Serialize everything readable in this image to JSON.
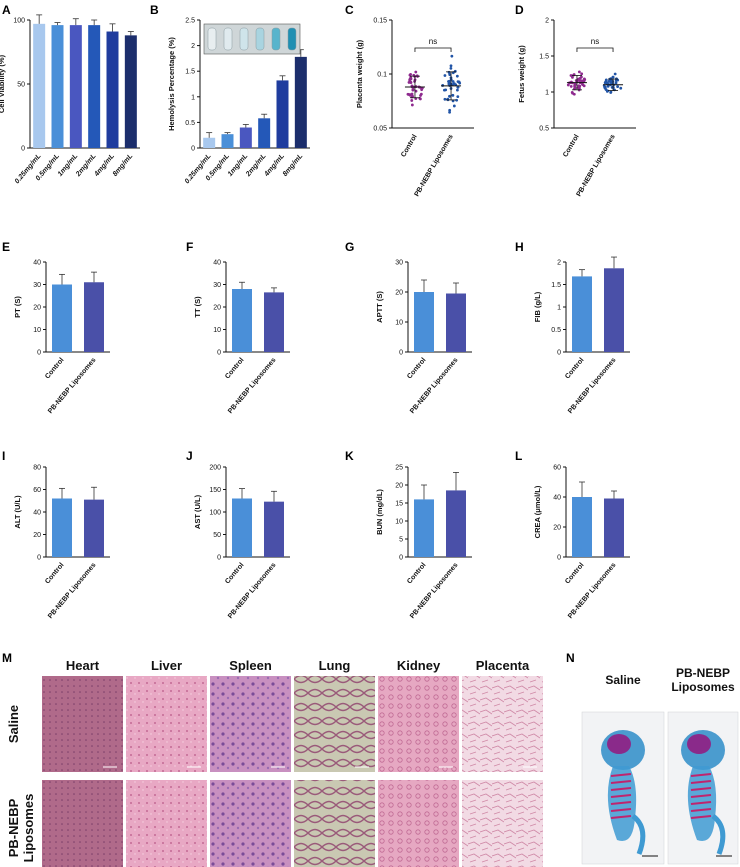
{
  "chart_data": [
    {
      "panel": "A",
      "type": "bar",
      "ylabel": "Cell Viability (%)",
      "categories": [
        "0.25mg/mL",
        "0.5mg/mL",
        "1mg/mL",
        "2mg/mL",
        "4mg/mL",
        "8mg/mL"
      ],
      "values": [
        97,
        96,
        96,
        96,
        91,
        88
      ],
      "errors": [
        7,
        2,
        5,
        4,
        6,
        3
      ],
      "ylim": [
        0,
        100
      ],
      "yticks": [
        0,
        50,
        100
      ],
      "colors": [
        "#a8c8ee",
        "#4a8fd8",
        "#4a57c0",
        "#2458b8",
        "#1f3c9e",
        "#1c2e6c"
      ]
    },
    {
      "panel": "B",
      "type": "bar",
      "ylabel": "Hemolysis Percentage (%)",
      "categories": [
        "0.25mg/mL",
        "0.5mg/mL",
        "1mg/mL",
        "2mg/mL",
        "4mg/mL",
        "8mg/mL"
      ],
      "values": [
        0.2,
        0.27,
        0.4,
        0.58,
        1.32,
        1.78
      ],
      "errors": [
        0.1,
        0.03,
        0.06,
        0.08,
        0.09,
        0.14
      ],
      "ylim": [
        0,
        2.5
      ],
      "yticks": [
        0,
        0.5,
        1.0,
        1.5,
        2.0,
        2.5
      ],
      "colors": [
        "#a8c8ee",
        "#4a8fd8",
        "#4a57c0",
        "#2458b8",
        "#1f3c9e",
        "#1c2e6c"
      ]
    },
    {
      "panel": "C",
      "type": "scatter",
      "ylabel": "Placenta weight (g)",
      "categories": [
        "Control",
        "PB-NEBP Liposomes"
      ],
      "means": [
        0.088,
        0.089
      ],
      "sd": [
        0.01,
        0.013
      ],
      "ylim": [
        0.05,
        0.15
      ],
      "yticks": [
        0.05,
        0.1,
        0.15
      ],
      "annotation": "ns",
      "colors": [
        "#8e2a8e",
        "#2154a6"
      ]
    },
    {
      "panel": "D",
      "type": "scatter",
      "ylabel": "Fetus weight (g)",
      "categories": [
        "Control",
        "PB-NEBP Liposomes"
      ],
      "means": [
        1.13,
        1.1
      ],
      "sd": [
        0.1,
        0.08
      ],
      "ylim": [
        0.5,
        2.0
      ],
      "yticks": [
        0.5,
        1.0,
        1.5,
        2.0
      ],
      "annotation": "ns",
      "colors": [
        "#8e2a8e",
        "#2154a6"
      ]
    },
    {
      "panel": "E",
      "type": "bar",
      "ylabel": "PT (S)",
      "categories": [
        "Control",
        "PB-NEBP Liposomes"
      ],
      "values": [
        30,
        31
      ],
      "errors": [
        4.5,
        4.5
      ],
      "ylim": [
        0,
        40
      ],
      "yticks": [
        0,
        10,
        20,
        30,
        40
      ],
      "colors": [
        "#4a8fd8",
        "#4a50a8"
      ]
    },
    {
      "panel": "F",
      "type": "bar",
      "ylabel": "TT (S)",
      "categories": [
        "Control",
        "PB-NEBP Liposomes"
      ],
      "values": [
        28,
        26.5
      ],
      "errors": [
        3,
        2
      ],
      "ylim": [
        0,
        40
      ],
      "yticks": [
        0,
        10,
        20,
        30,
        40
      ],
      "colors": [
        "#4a8fd8",
        "#4a50a8"
      ]
    },
    {
      "panel": "G",
      "type": "bar",
      "ylabel": "APTT (S)",
      "categories": [
        "Control",
        "PB-NEBP Liposomes"
      ],
      "values": [
        20,
        19.5
      ],
      "errors": [
        4,
        3.5
      ],
      "ylim": [
        0,
        30
      ],
      "yticks": [
        0,
        10,
        20,
        30
      ],
      "colors": [
        "#4a8fd8",
        "#4a50a8"
      ]
    },
    {
      "panel": "H",
      "type": "bar",
      "ylabel": "FIB (g/L)",
      "categories": [
        "Control",
        "PB-NEBP Liposomes"
      ],
      "values": [
        1.68,
        1.86
      ],
      "errors": [
        0.15,
        0.25
      ],
      "ylim": [
        0,
        2.0
      ],
      "yticks": [
        0,
        0.5,
        1.0,
        1.5,
        2.0
      ],
      "colors": [
        "#4a8fd8",
        "#4a50a8"
      ]
    },
    {
      "panel": "I",
      "type": "bar",
      "ylabel": "ALT (U/L)",
      "categories": [
        "Control",
        "PB-NEBP Liposomes"
      ],
      "values": [
        52,
        51
      ],
      "errors": [
        9,
        11
      ],
      "ylim": [
        0,
        80
      ],
      "yticks": [
        0,
        20,
        40,
        60,
        80
      ],
      "colors": [
        "#4a8fd8",
        "#4a50a8"
      ]
    },
    {
      "panel": "J",
      "type": "bar",
      "ylabel": "AST (U/L)",
      "categories": [
        "Control",
        "PB-NEBP Liposomes"
      ],
      "values": [
        130,
        123
      ],
      "errors": [
        22,
        23
      ],
      "ylim": [
        0,
        200
      ],
      "yticks": [
        0,
        50,
        100,
        150,
        200
      ],
      "colors": [
        "#4a8fd8",
        "#4a50a8"
      ]
    },
    {
      "panel": "K",
      "type": "bar",
      "ylabel": "BUN (mg/dL)",
      "categories": [
        "Control",
        "PB-NEBP Liposomes"
      ],
      "values": [
        16,
        18.5
      ],
      "errors": [
        4,
        5
      ],
      "ylim": [
        0,
        25
      ],
      "yticks": [
        0,
        5,
        10,
        15,
        20,
        25
      ],
      "colors": [
        "#4a8fd8",
        "#4a50a8"
      ]
    },
    {
      "panel": "L",
      "type": "bar",
      "ylabel": "CREA (μmol/L)",
      "categories": [
        "Control",
        "PB-NEBP Liposomes"
      ],
      "values": [
        40,
        39
      ],
      "errors": [
        10,
        5
      ],
      "ylim": [
        0,
        60
      ],
      "yticks": [
        0,
        20,
        40,
        60
      ],
      "colors": [
        "#4a8fd8",
        "#4a50a8"
      ]
    }
  ],
  "histology": {
    "panel": "M",
    "columns": [
      "Heart",
      "Liver",
      "Spleen",
      "Lung",
      "Kidney",
      "Placenta"
    ],
    "rows": [
      "Saline",
      "PB-NEBP\nLiposomes"
    ]
  },
  "skeleton": {
    "panel": "N",
    "titles": [
      "Saline",
      "PB-NEBP\nLiposomes"
    ]
  }
}
